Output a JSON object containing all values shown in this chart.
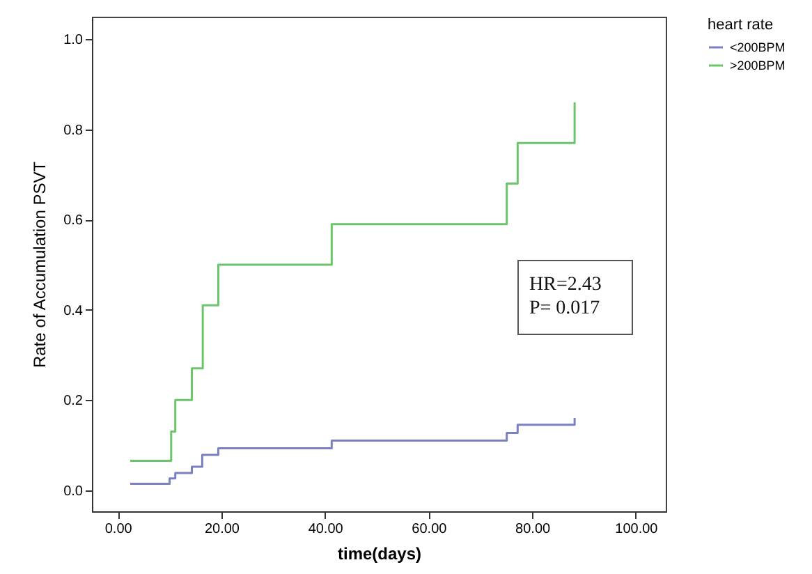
{
  "chart_data": {
    "type": "step",
    "xlabel": "time(days)",
    "ylabel": "Rate of Accumulation PSVT",
    "legend_title": "heart rate",
    "annotations": [
      "HR=2.43",
      "P= 0.017"
    ],
    "xlim": [
      -5,
      105.8
    ],
    "ylim": [
      -0.047,
      1.05
    ],
    "xticks": [
      {
        "value": 0,
        "label": "0.00"
      },
      {
        "value": 20,
        "label": "20.00"
      },
      {
        "value": 40,
        "label": "40.00"
      },
      {
        "value": 60,
        "label": "60.00"
      },
      {
        "value": 80,
        "label": "80.00"
      },
      {
        "value": 100,
        "label": "100.00"
      }
    ],
    "yticks": [
      {
        "value": 0,
        "label": "0.0"
      },
      {
        "value": 0.2,
        "label": "0.2"
      },
      {
        "value": 0.4,
        "label": "0.4"
      },
      {
        "value": 0.6,
        "label": "0.6"
      },
      {
        "value": 0.8,
        "label": "0.8"
      },
      {
        "value": 1,
        "label": "1.0"
      }
    ],
    "grid": false,
    "legend": "top right",
    "marker": "none",
    "line_style": "solid",
    "series": [
      {
        "name": "<200BPM",
        "color": "#7b7fc4",
        "x": [
          2.4,
          10.0,
          11.1,
          14.3,
          16.3,
          19.4,
          41.3,
          75.1,
          77.2,
          88.2
        ],
        "values": [
          0.014,
          0.026,
          0.038,
          0.052,
          0.078,
          0.093,
          0.11,
          0.127,
          0.145,
          0.16
        ]
      },
      {
        "name": ">200BPM",
        "color": "#6cc46c",
        "x": [
          2.4,
          10.3,
          11.1,
          14.3,
          16.4,
          19.4,
          41.3,
          75.1,
          77.2,
          88.2
        ],
        "values": [
          0.065,
          0.13,
          0.2,
          0.27,
          0.41,
          0.5,
          0.59,
          0.68,
          0.77,
          0.86
        ]
      }
    ]
  }
}
